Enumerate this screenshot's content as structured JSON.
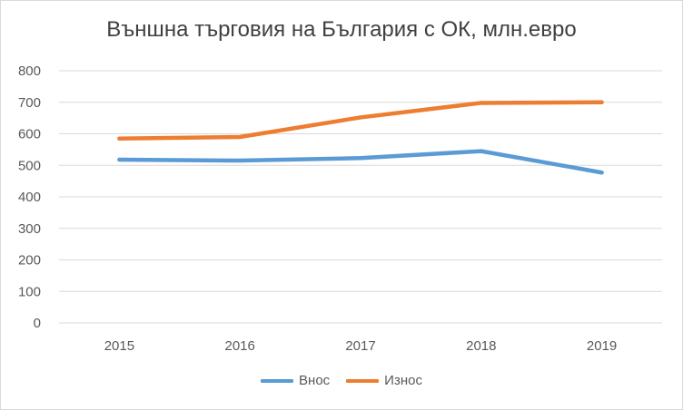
{
  "chart_data": {
    "type": "line",
    "title": "Външна търговия на България с ОК, млн.евро",
    "xlabel": "",
    "ylabel": "",
    "categories": [
      "2015",
      "2016",
      "2017",
      "2018",
      "2019"
    ],
    "ylim": [
      0,
      800
    ],
    "yticks": [
      0,
      100,
      200,
      300,
      400,
      500,
      600,
      700,
      800
    ],
    "grid": true,
    "legend_position": "bottom",
    "series": [
      {
        "name": "Внос",
        "color": "#5b9bd5",
        "values": [
          518,
          515,
          523,
          545,
          477
        ]
      },
      {
        "name": "Износ",
        "color": "#ed7d31",
        "values": [
          585,
          590,
          652,
          698,
          700
        ]
      }
    ]
  }
}
